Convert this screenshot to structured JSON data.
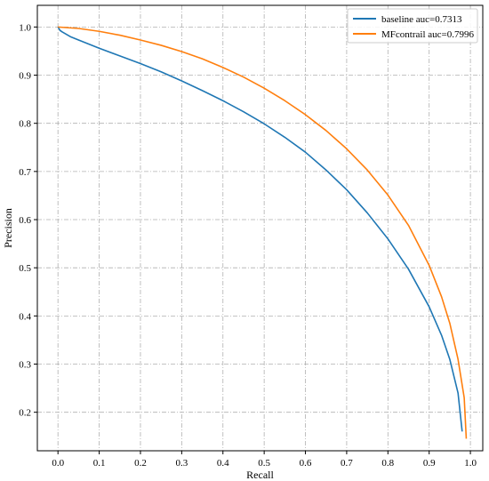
{
  "chart_data": {
    "type": "line",
    "title": "",
    "xlabel": "Recall",
    "ylabel": "Precision",
    "xlim": [
      -0.05,
      1.03
    ],
    "ylim": [
      0.12,
      1.045
    ],
    "xticks": [
      0.0,
      0.1,
      0.2,
      0.3,
      0.4,
      0.5,
      0.6,
      0.7,
      0.8,
      0.9,
      1.0
    ],
    "xtick_labels": [
      "0.0",
      "0.1",
      "0.2",
      "0.3",
      "0.4",
      "0.5",
      "0.6",
      "0.7",
      "0.8",
      "0.9",
      "1.0"
    ],
    "yticks": [
      0.2,
      0.3,
      0.4,
      0.5,
      0.6,
      0.7,
      0.8,
      0.9,
      1.0
    ],
    "ytick_labels": [
      "0.2",
      "0.3",
      "0.4",
      "0.5",
      "0.6",
      "0.7",
      "0.8",
      "0.9",
      "1.0"
    ],
    "grid": true,
    "legend_position": "top-right",
    "series": [
      {
        "name": "baseline auc=0.7313",
        "color": "#1f77b4",
        "x": [
          0.0,
          0.005,
          0.01,
          0.03,
          0.05,
          0.1,
          0.15,
          0.2,
          0.25,
          0.3,
          0.35,
          0.4,
          0.45,
          0.5,
          0.55,
          0.6,
          0.65,
          0.7,
          0.75,
          0.8,
          0.85,
          0.9,
          0.93,
          0.95,
          0.97,
          0.98
        ],
        "y": [
          1.0,
          0.993,
          0.99,
          0.98,
          0.973,
          0.956,
          0.94,
          0.924,
          0.907,
          0.888,
          0.868,
          0.847,
          0.824,
          0.799,
          0.771,
          0.74,
          0.703,
          0.662,
          0.614,
          0.56,
          0.497,
          0.419,
          0.36,
          0.31,
          0.24,
          0.16
        ]
      },
      {
        "name": "MFcontrail auc=0.7996",
        "color": "#ff7f0e",
        "x": [
          0.0,
          0.05,
          0.1,
          0.15,
          0.2,
          0.25,
          0.3,
          0.35,
          0.4,
          0.45,
          0.5,
          0.55,
          0.6,
          0.65,
          0.7,
          0.75,
          0.8,
          0.85,
          0.9,
          0.93,
          0.95,
          0.97,
          0.985,
          0.99
        ],
        "y": [
          1.0,
          0.997,
          0.991,
          0.983,
          0.973,
          0.962,
          0.949,
          0.934,
          0.916,
          0.896,
          0.873,
          0.847,
          0.818,
          0.785,
          0.747,
          0.703,
          0.651,
          0.588,
          0.505,
          0.44,
          0.385,
          0.31,
          0.23,
          0.145
        ]
      }
    ]
  }
}
